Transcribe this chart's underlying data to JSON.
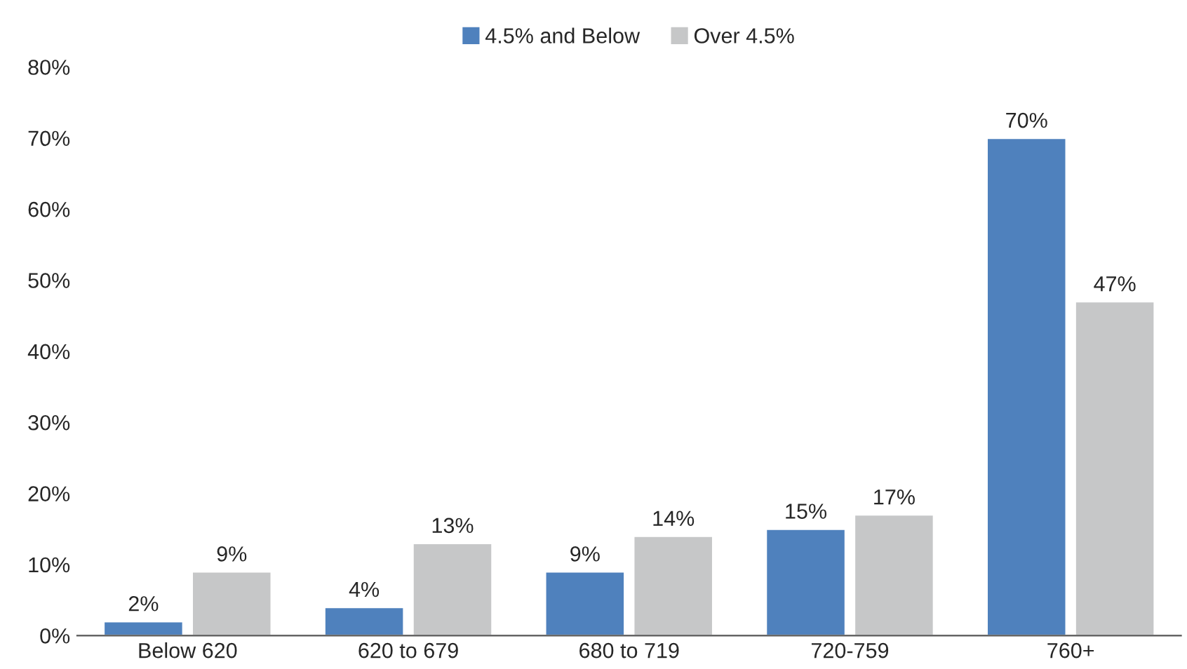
{
  "chart_data": {
    "type": "bar",
    "categories": [
      "Below 620",
      "620 to 679",
      "680 to 719",
      "720-759",
      "760+"
    ],
    "series": [
      {
        "name": "4.5% and Below",
        "color": "#4f81bd",
        "values": [
          2,
          4,
          9,
          15,
          70
        ]
      },
      {
        "name": "Over 4.5%",
        "color": "#c6c7c8",
        "values": [
          9,
          13,
          14,
          17,
          47
        ]
      }
    ],
    "ylim": [
      0,
      80
    ],
    "yticks": [
      {
        "value": 0,
        "label": "0%"
      },
      {
        "value": 10,
        "label": "10%"
      },
      {
        "value": 20,
        "label": "20%"
      },
      {
        "value": 30,
        "label": "30%"
      },
      {
        "value": 40,
        "label": "40%"
      },
      {
        "value": 50,
        "label": "50%"
      },
      {
        "value": 60,
        "label": "60%"
      },
      {
        "value": 70,
        "label": "70%"
      },
      {
        "value": 80,
        "label": "80%"
      }
    ],
    "value_labels": [
      [
        "2%",
        "4%",
        "9%",
        "15%",
        "70%"
      ],
      [
        "9%",
        "13%",
        "14%",
        "17%",
        "47%"
      ]
    ],
    "legend": "top",
    "grid": false
  }
}
